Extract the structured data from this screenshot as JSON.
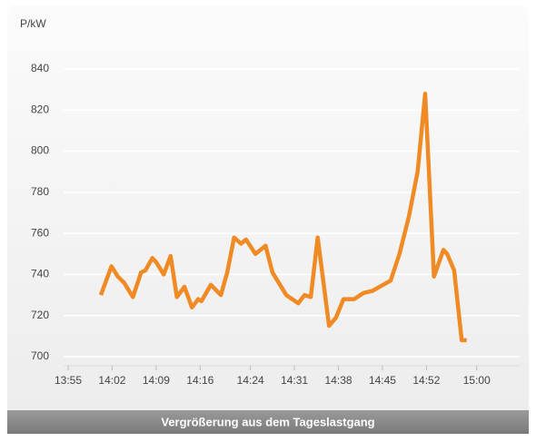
{
  "chart_data": {
    "type": "line",
    "y_label": "P/kW",
    "caption": "Vergrößerung aus dem Tageslastgang",
    "x": [
      840.2,
      841.9,
      842.9,
      843.9,
      845.3,
      846.6,
      847.3,
      848.4,
      849.0,
      850.2,
      851.3,
      852.3,
      853.5,
      854.7,
      855.7,
      856.2,
      857.7,
      859.3,
      860.3,
      861.4,
      862.5,
      863.3,
      864.8,
      866.4,
      867.5,
      869.7,
      871.6,
      872.6,
      873.6,
      874.7,
      876.5,
      877.6,
      878.8,
      880.5,
      882.0,
      883.4,
      886.3,
      887.7,
      889.2,
      890.6,
      891.8,
      893.2,
      894.7,
      895.3,
      896.4,
      897.6,
      898.4
    ],
    "values": [
      730,
      744,
      739,
      736,
      729,
      741,
      742,
      748,
      746,
      740,
      749,
      729,
      734,
      724,
      728,
      727,
      735,
      730,
      741,
      758,
      755,
      757,
      750,
      754,
      741,
      730,
      726,
      730,
      729,
      758,
      715,
      719,
      728,
      728,
      731,
      732,
      737,
      750,
      768,
      790,
      828,
      739,
      752,
      750,
      742,
      708,
      708
    ],
    "color": "#f08a24",
    "xlim": [
      835,
      902
    ],
    "xticks": [
      {
        "value": 835,
        "label": "13:55"
      },
      {
        "value": 842,
        "label": "14:02"
      },
      {
        "value": 849,
        "label": "14:09"
      },
      {
        "value": 856,
        "label": "14:16"
      },
      {
        "value": 864,
        "label": "14:24"
      },
      {
        "value": 871,
        "label": "14:31"
      },
      {
        "value": 878,
        "label": "14:38"
      },
      {
        "value": 885,
        "label": "14:45"
      },
      {
        "value": 892,
        "label": "14:52"
      },
      {
        "value": 900,
        "label": "15:00"
      }
    ],
    "ylim": [
      700,
      840
    ],
    "yticks": [
      700,
      720,
      740,
      760,
      780,
      800,
      820,
      840
    ],
    "grid": true
  }
}
